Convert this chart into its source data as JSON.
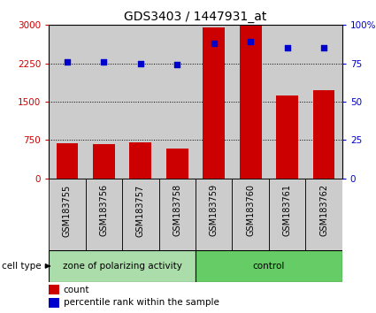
{
  "title": "GDS3403 / 1447931_at",
  "samples": [
    "GSM183755",
    "GSM183756",
    "GSM183757",
    "GSM183758",
    "GSM183759",
    "GSM183760",
    "GSM183761",
    "GSM183762"
  ],
  "counts": [
    680,
    670,
    700,
    590,
    2950,
    2980,
    1620,
    1720
  ],
  "percentiles": [
    76,
    76,
    75,
    74,
    88,
    89,
    85,
    85
  ],
  "ylim_left": [
    0,
    3000
  ],
  "ylim_right": [
    0,
    100
  ],
  "yticks_left": [
    0,
    750,
    1500,
    2250,
    3000
  ],
  "ytick_labels_left": [
    "0",
    "750",
    "1500",
    "2250",
    "3000"
  ],
  "yticks_right": [
    0,
    25,
    50,
    75,
    100
  ],
  "ytick_labels_right": [
    "0",
    "25",
    "50",
    "75",
    "100%"
  ],
  "bar_color": "#cc0000",
  "dot_color": "#0000cc",
  "group1_label": "zone of polarizing activity",
  "group2_label": "control",
  "group1_color": "#aaddaa",
  "group2_color": "#66cc66",
  "group1_count": 4,
  "group2_count": 4,
  "cell_type_label": "cell type",
  "legend_count_label": "count",
  "legend_pct_label": "percentile rank within the sample",
  "col_bg_color": "#cccccc",
  "title_fontsize": 10,
  "tick_fontsize": 7.5,
  "label_fontsize": 7.5,
  "sample_fontsize": 7.0
}
